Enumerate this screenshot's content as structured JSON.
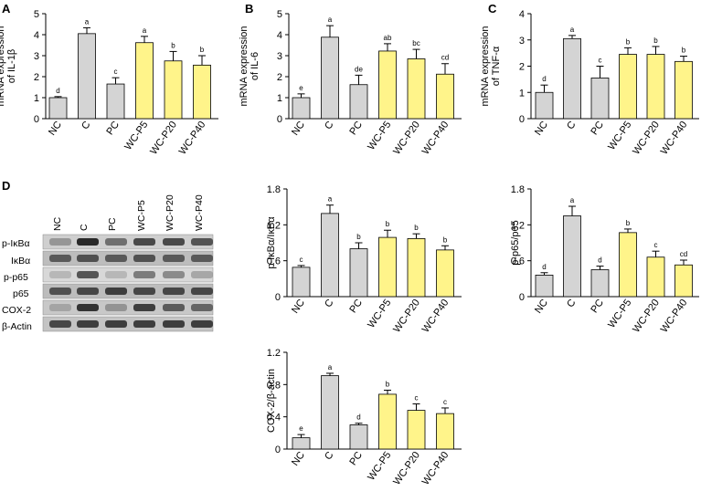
{
  "figure": {
    "panel_letters": [
      "A",
      "B",
      "C",
      "D"
    ],
    "colors": {
      "control_bar": "#d4d4d4",
      "treatment_bar": "#fff48a",
      "axis": "#000000"
    }
  },
  "blot": {
    "lanes": [
      "NC",
      "C",
      "PC",
      "WC-P5",
      "WC-P20",
      "WC-P40"
    ],
    "rows": [
      "p-IκBα",
      "IκBα",
      "p-p65",
      "p65",
      "COX-2",
      "β-Actin"
    ]
  },
  "chart_data": [
    {
      "id": "A",
      "type": "bar",
      "ylabel_lines": [
        "mRNA expression",
        "of IL-1β"
      ],
      "categories": [
        "NC",
        "C",
        "PC",
        "WC-P5",
        "WC-P20",
        "WC-P40"
      ],
      "values": [
        1.0,
        4.05,
        1.65,
        3.62,
        2.75,
        2.55
      ],
      "errors": [
        0.05,
        0.28,
        0.3,
        0.3,
        0.45,
        0.45
      ],
      "sig": [
        "d",
        "a",
        "c",
        "a",
        "b",
        "b"
      ],
      "yticks": [
        "0",
        "1",
        "2",
        "3",
        "4",
        "5"
      ],
      "ylim": [
        0,
        5
      ],
      "grid": false
    },
    {
      "id": "B",
      "type": "bar",
      "ylabel_lines": [
        "mRNA expression",
        "of IL-6"
      ],
      "categories": [
        "NC",
        "C",
        "PC",
        "WC-P5",
        "WC-P20",
        "WC-P40"
      ],
      "values": [
        1.0,
        3.88,
        1.62,
        3.22,
        2.85,
        2.12
      ],
      "errors": [
        0.18,
        0.55,
        0.45,
        0.35,
        0.45,
        0.5
      ],
      "sig": [
        "e",
        "a",
        "de",
        "ab",
        "bc",
        "cd"
      ],
      "yticks": [
        "0",
        "1",
        "2",
        "3",
        "4",
        "5"
      ],
      "ylim": [
        0,
        5
      ],
      "grid": false
    },
    {
      "id": "C",
      "type": "bar",
      "ylabel_lines": [
        "mRNA expression",
        "of TNF-α"
      ],
      "categories": [
        "NC",
        "C",
        "PC",
        "WC-P5",
        "WC-P20",
        "WC-P40"
      ],
      "values": [
        1.0,
        3.05,
        1.55,
        2.45,
        2.45,
        2.18
      ],
      "errors": [
        0.28,
        0.12,
        0.45,
        0.25,
        0.3,
        0.2
      ],
      "sig": [
        "d",
        "a",
        "c",
        "b",
        "b",
        "b"
      ],
      "yticks": [
        "0",
        "1",
        "2",
        "3",
        "4"
      ],
      "ylim": [
        0,
        4
      ],
      "grid": false
    },
    {
      "id": "D1",
      "type": "bar",
      "ylabel_lines": [
        "p-IκBα/IκBα"
      ],
      "categories": [
        "NC",
        "C",
        "PC",
        "WC-P5",
        "WC-P20",
        "WC-P40"
      ],
      "values": [
        0.49,
        1.39,
        0.8,
        0.99,
        0.97,
        0.78
      ],
      "errors": [
        0.03,
        0.14,
        0.1,
        0.12,
        0.08,
        0.07
      ],
      "sig": [
        "c",
        "a",
        "b",
        "b",
        "b",
        "b"
      ],
      "yticks": [
        "0",
        "0.6",
        "1.2",
        "1.8"
      ],
      "ylim": [
        0,
        1.8
      ],
      "grid": false
    },
    {
      "id": "D2",
      "type": "bar",
      "ylabel_lines": [
        "p-p65/p65"
      ],
      "categories": [
        "NC",
        "C",
        "PC",
        "WC-P5",
        "WC-P20",
        "WC-P40"
      ],
      "values": [
        0.36,
        1.35,
        0.45,
        1.07,
        0.66,
        0.53
      ],
      "errors": [
        0.04,
        0.16,
        0.06,
        0.06,
        0.1,
        0.08
      ],
      "sig": [
        "d",
        "a",
        "d",
        "b",
        "c",
        "cd"
      ],
      "yticks": [
        "0",
        "0.6",
        "1.2",
        "1.8"
      ],
      "ylim": [
        0,
        1.8
      ],
      "grid": false
    },
    {
      "id": "D3",
      "type": "bar",
      "ylabel_lines": [
        "COX-2/β-actin"
      ],
      "categories": [
        "NC",
        "C",
        "PC",
        "WC-P5",
        "WC-P20",
        "WC-P40"
      ],
      "values": [
        0.14,
        0.91,
        0.3,
        0.68,
        0.48,
        0.44
      ],
      "errors": [
        0.04,
        0.03,
        0.02,
        0.05,
        0.08,
        0.07
      ],
      "sig": [
        "e",
        "a",
        "d",
        "b",
        "c",
        "c"
      ],
      "yticks": [
        "0",
        "0.4",
        "0.8",
        "1.2"
      ],
      "ylim": [
        0,
        1.2
      ],
      "grid": false
    }
  ]
}
